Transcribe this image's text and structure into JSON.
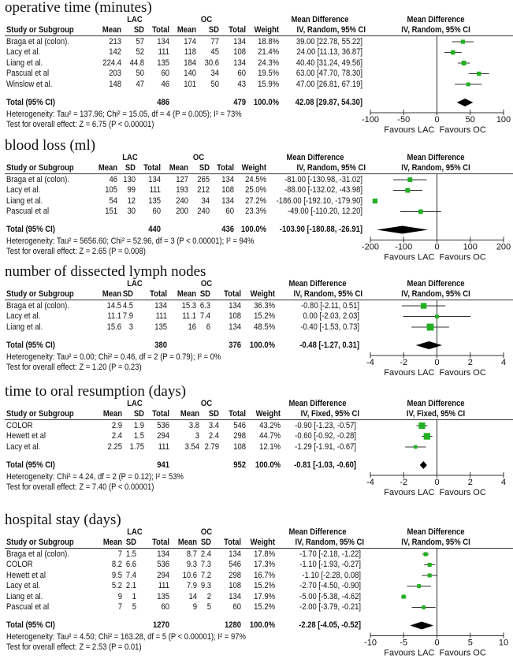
{
  "headers": {
    "lac": "LAC",
    "oc": "OC",
    "study": "Study or Subgroup",
    "mean": "Mean",
    "sd": "SD",
    "total": "Total",
    "weight": "Weight",
    "md": "Mean Difference",
    "favours_left": "Favours LAC",
    "favours_right": "Favours OC"
  },
  "colors": {
    "marker": "#22b022",
    "diamond": "#000000",
    "lines": "#333333"
  },
  "chart_data": [
    {
      "type": "forest",
      "title": "operative time (minutes)",
      "method": "IV, Random, 95% CI",
      "xlim": [
        -100,
        100
      ],
      "ticks": [
        "-100",
        "-50",
        "0",
        "50",
        "100"
      ],
      "studies": [
        {
          "name": "Braga et al (colon).",
          "lac_mean": "213",
          "lac_sd": "57",
          "lac_total": "134",
          "oc_mean": "174",
          "oc_sd": "77",
          "oc_total": "134",
          "weight": "18.8%",
          "ci_text": "39.00 [22.78, 55.22]",
          "md": 39.0,
          "lo": 22.78,
          "hi": 55.22
        },
        {
          "name": "Lacy et al.",
          "lac_mean": "142",
          "lac_sd": "52",
          "lac_total": "111",
          "oc_mean": "118",
          "oc_sd": "45",
          "oc_total": "108",
          "weight": "21.4%",
          "ci_text": "24.00 [11.13, 36.87]",
          "md": 24.0,
          "lo": 11.13,
          "hi": 36.87
        },
        {
          "name": "Liang et al.",
          "lac_mean": "224.4",
          "lac_sd": "44.8",
          "lac_total": "135",
          "oc_mean": "184",
          "oc_sd": "30.6",
          "oc_total": "134",
          "weight": "24.3%",
          "ci_text": "40.40 [31.24, 49.56]",
          "md": 40.4,
          "lo": 31.24,
          "hi": 49.56
        },
        {
          "name": "Pascual et al",
          "lac_mean": "203",
          "lac_sd": "50",
          "lac_total": "60",
          "oc_mean": "140",
          "oc_sd": "34",
          "oc_total": "60",
          "weight": "19.5%",
          "ci_text": "63.00 [47.70, 78.30]",
          "md": 63.0,
          "lo": 47.7,
          "hi": 78.3
        },
        {
          "name": "Winslow et al.",
          "lac_mean": "148",
          "lac_sd": "47",
          "lac_total": "46",
          "oc_mean": "101",
          "oc_sd": "50",
          "oc_total": "43",
          "weight": "15.9%",
          "ci_text": "47.00 [26.81, 67.19]",
          "md": 47.0,
          "lo": 26.81,
          "hi": 67.19
        }
      ],
      "total": {
        "label": "Total (95% CI)",
        "lac_total": "486",
        "oc_total": "479",
        "weight": "100.0%",
        "ci_text": "42.08 [29.87, 54.30]",
        "md": 42.08,
        "lo": 29.87,
        "hi": 54.3
      },
      "heterogeneity": "Heterogeneity: Tau² = 137.96; Chi² = 15.05, df = 4 (P = 0.005); I² = 73%",
      "overall": "Test for overall effect: Z = 6.75 (P < 0.00001)"
    },
    {
      "type": "forest",
      "title": "blood loss (ml)",
      "method": "IV, Random, 95% CI",
      "xlim": [
        -200,
        200
      ],
      "ticks": [
        "-200",
        "-100",
        "0",
        "100",
        "200"
      ],
      "studies": [
        {
          "name": "Braga et al (colon).",
          "lac_mean": "46",
          "lac_sd": "130",
          "lac_total": "134",
          "oc_mean": "127",
          "oc_sd": "265",
          "oc_total": "134",
          "weight": "24.5%",
          "ci_text": "-81.00 [-130.98, -31.02]",
          "md": -81.0,
          "lo": -130.98,
          "hi": -31.02
        },
        {
          "name": "Lacy et al.",
          "lac_mean": "105",
          "lac_sd": "99",
          "lac_total": "111",
          "oc_mean": "193",
          "oc_sd": "212",
          "oc_total": "108",
          "weight": "25.0%",
          "ci_text": "-88.00 [-132.02, -43.98]",
          "md": -88.0,
          "lo": -132.02,
          "hi": -43.98
        },
        {
          "name": "Liang et al.",
          "lac_mean": "54",
          "lac_sd": "12",
          "lac_total": "135",
          "oc_mean": "240",
          "oc_sd": "34",
          "oc_total": "134",
          "weight": "27.2%",
          "ci_text": "-186.00 [-192.10, -179.90]",
          "md": -186.0,
          "lo": -192.1,
          "hi": -179.9
        },
        {
          "name": "Pascual et al",
          "lac_mean": "151",
          "lac_sd": "30",
          "lac_total": "60",
          "oc_mean": "200",
          "oc_sd": "240",
          "oc_total": "60",
          "weight": "23.3%",
          "ci_text": "-49.00 [-110.20, 12.20]",
          "md": -49.0,
          "lo": -110.2,
          "hi": 12.2
        }
      ],
      "total": {
        "label": "Total (95% CI)",
        "lac_total": "440",
        "oc_total": "436",
        "weight": "100.0%",
        "ci_text": "-103.90 [-180.88, -26.91]",
        "md": -103.9,
        "lo": -180.88,
        "hi": -26.91
      },
      "heterogeneity": "Heterogeneity: Tau² = 5656.60; Chi² = 52.96, df = 3 (P < 0.00001); I² = 94%",
      "overall": "Test for overall effect: Z = 2.65 (P = 0.008)"
    },
    {
      "type": "forest",
      "title": "number of dissected lymph nodes",
      "method": "IV, Random, 95% CI",
      "xlim": [
        -4,
        4
      ],
      "ticks": [
        "-4",
        "-2",
        "0",
        "2",
        "4"
      ],
      "studies": [
        {
          "name": "Braga et al (colon).",
          "lac_mean": "14.5",
          "lac_sd": "4.5",
          "lac_total": "134",
          "oc_mean": "15.3",
          "oc_sd": "6.3",
          "oc_total": "134",
          "weight": "36.3%",
          "ci_text": "-0.80 [-2.11, 0.51]",
          "md": -0.8,
          "lo": -2.11,
          "hi": 0.51
        },
        {
          "name": "Lacy et al.",
          "lac_mean": "11.1",
          "lac_sd": "7.9",
          "lac_total": "111",
          "oc_mean": "11.1",
          "oc_sd": "7.4",
          "oc_total": "108",
          "weight": "15.2%",
          "ci_text": "0.00 [-2.03, 2.03]",
          "md": 0.0,
          "lo": -2.03,
          "hi": 2.03
        },
        {
          "name": "Liang et al.",
          "lac_mean": "15.6",
          "lac_sd": "3",
          "lac_total": "135",
          "oc_mean": "16",
          "oc_sd": "6",
          "oc_total": "134",
          "weight": "48.5%",
          "ci_text": "-0.40 [-1.53, 0.73]",
          "md": -0.4,
          "lo": -1.53,
          "hi": 0.73
        }
      ],
      "total": {
        "label": "Total (95% CI)",
        "lac_total": "380",
        "oc_total": "376",
        "weight": "100.0%",
        "ci_text": "-0.48 [-1.27, 0.31]",
        "md": -0.48,
        "lo": -1.27,
        "hi": 0.31
      },
      "heterogeneity": "Heterogeneity: Tau² = 0.00; Chi² = 0.46, df = 2 (P = 0.79); I² = 0%",
      "overall": "Test for overall effect: Z = 1.20 (P = 0.23)"
    },
    {
      "type": "forest",
      "title": "time to oral resumption (days)",
      "method": "IV, Fixed, 95% CI",
      "xlim": [
        -4,
        4
      ],
      "ticks": [
        "-4",
        "-2",
        "0",
        "2",
        "4"
      ],
      "studies": [
        {
          "name": "COLOR",
          "lac_mean": "2.9",
          "lac_sd": "1.9",
          "lac_total": "536",
          "oc_mean": "3.8",
          "oc_sd": "3.4",
          "oc_total": "546",
          "weight": "43.2%",
          "ci_text": "-0.90 [-1.23, -0.57]",
          "md": -0.9,
          "lo": -1.23,
          "hi": -0.57
        },
        {
          "name": "Hewett et al",
          "lac_mean": "2.4",
          "lac_sd": "1.5",
          "lac_total": "294",
          "oc_mean": "3",
          "oc_sd": "2.4",
          "oc_total": "298",
          "weight": "44.7%",
          "ci_text": "-0.60 [-0.92, -0.28]",
          "md": -0.6,
          "lo": -0.92,
          "hi": -0.28
        },
        {
          "name": "Lacy et al.",
          "lac_mean": "2.25",
          "lac_sd": "1.75",
          "lac_total": "111",
          "oc_mean": "3.54",
          "oc_sd": "2.79",
          "oc_total": "108",
          "weight": "12.1%",
          "ci_text": "-1.29 [-1.91, -0.67]",
          "md": -1.29,
          "lo": -1.91,
          "hi": -0.67
        }
      ],
      "total": {
        "label": "Total (95% CI)",
        "lac_total": "941",
        "oc_total": "952",
        "weight": "100.0%",
        "ci_text": "-0.81 [-1.03, -0.60]",
        "md": -0.81,
        "lo": -1.03,
        "hi": -0.6
      },
      "heterogeneity": "Heterogeneity: Chi² = 4.24, df = 2 (P = 0.12); I² = 53%",
      "overall": "Test for overall effect: Z = 7.40 (P < 0.00001)"
    },
    {
      "type": "forest",
      "title": "hospital stay (days)",
      "method": "IV, Random, 95% CI",
      "xlim": [
        -10,
        10
      ],
      "ticks": [
        "-10",
        "-5",
        "0",
        "5",
        "10"
      ],
      "studies": [
        {
          "name": "Braga et al (colon).",
          "lac_mean": "7",
          "lac_sd": "1.5",
          "lac_total": "134",
          "oc_mean": "8.7",
          "oc_sd": "2.4",
          "oc_total": "134",
          "weight": "17.8%",
          "ci_text": "-1.70 [-2.18, -1.22]",
          "md": -1.7,
          "lo": -2.18,
          "hi": -1.22
        },
        {
          "name": "COLOR",
          "lac_mean": "8.2",
          "lac_sd": "6.6",
          "lac_total": "536",
          "oc_mean": "9.3",
          "oc_sd": "7.3",
          "oc_total": "546",
          "weight": "17.3%",
          "ci_text": "-1.10 [-1.93, -0.27]",
          "md": -1.1,
          "lo": -1.93,
          "hi": -0.27
        },
        {
          "name": "Hewett et al",
          "lac_mean": "9.5",
          "lac_sd": "7.4",
          "lac_total": "294",
          "oc_mean": "10.6",
          "oc_sd": "7.2",
          "oc_total": "298",
          "weight": "16.7%",
          "ci_text": "-1.10 [-2.28, 0.08]",
          "md": -1.1,
          "lo": -2.28,
          "hi": 0.08
        },
        {
          "name": "Lacy et al.",
          "lac_mean": "5.2",
          "lac_sd": "2.1",
          "lac_total": "111",
          "oc_mean": "7.9",
          "oc_sd": "9.3",
          "oc_total": "108",
          "weight": "15.2%",
          "ci_text": "-2.70 [-4.50, -0.90]",
          "md": -2.7,
          "lo": -4.5,
          "hi": -0.9
        },
        {
          "name": "Liang et al.",
          "lac_mean": "9",
          "lac_sd": "1",
          "lac_total": "135",
          "oc_mean": "14",
          "oc_sd": "2",
          "oc_total": "134",
          "weight": "17.9%",
          "ci_text": "-5.00 [-5.38, -4.62]",
          "md": -5.0,
          "lo": -5.38,
          "hi": -4.62
        },
        {
          "name": "Pascual et al",
          "lac_mean": "7",
          "lac_sd": "5",
          "lac_total": "60",
          "oc_mean": "9",
          "oc_sd": "5",
          "oc_total": "60",
          "weight": "15.2%",
          "ci_text": "-2.00 [-3.79, -0.21]",
          "md": -2.0,
          "lo": -3.79,
          "hi": -0.21
        }
      ],
      "total": {
        "label": "Total (95% CI)",
        "lac_total": "1270",
        "oc_total": "1280",
        "weight": "100.0%",
        "ci_text": "-2.28 [-4.05, -0.52]",
        "md": -2.28,
        "lo": -4.05,
        "hi": -0.52
      },
      "heterogeneity": "Heterogeneity: Tau² = 4.50; Chi² = 163.28, df = 5 (P < 0.00001); I² = 97%",
      "overall": "Test for overall effect: Z = 2.53 (P = 0.01)"
    }
  ]
}
